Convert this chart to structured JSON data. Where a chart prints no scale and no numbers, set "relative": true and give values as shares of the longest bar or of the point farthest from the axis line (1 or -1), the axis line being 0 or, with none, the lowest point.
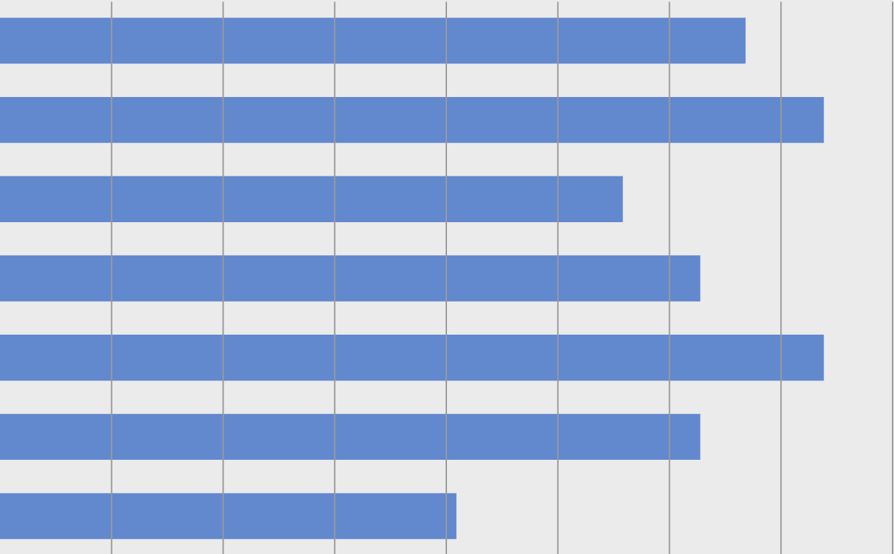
{
  "chart_data": {
    "type": "bar",
    "orientation": "horizontal",
    "relative": true,
    "categories": [
      null,
      null,
      null,
      null,
      null,
      null,
      null
    ],
    "values": [
      0.905,
      1,
      0.756,
      0.85,
      1,
      0.85,
      0.554
    ],
    "color": "#5b83cc",
    "grid": "x",
    "tick_labels": false
  }
}
